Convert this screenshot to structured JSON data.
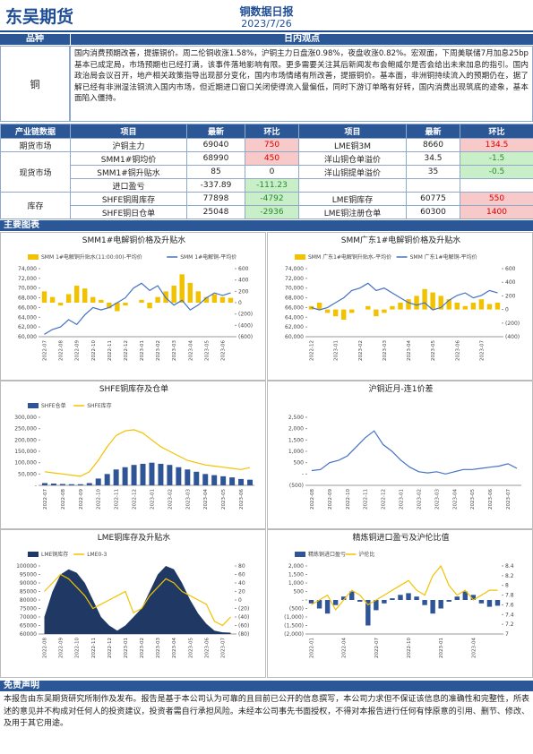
{
  "header": {
    "logo": "东吴期货",
    "title": "铜数据日报",
    "date": "2023/7/26"
  },
  "view": {
    "head_label": "品种",
    "head_title": "日内观点",
    "variety": "铜",
    "text": "国内消费预期改善，提振铜价。周二伦铜收涨1.58%，沪铜主力日盘涨0.98%，夜盘收涨0.82%。宏观面，下周美联储7月加息25bp基本已成定局，市场预期也已经打满，该事件落地影响有限。更多需要关注其后新闻发布会鲍威尔是否会给出未来加息的指引。国内政治局会议召开，地产相关政策指导出现部分变化，国内市场情绪有所改善，提振铜价。基本面，非洲铜持续流入的预期仍在，据了解已经有非洲湿法铜流入国内市场，但近期进口窗口关闭使得流入量偏低，同时下游订单略有好转，国内消费出现筑底的迹象，基本面陷入僵持。"
  },
  "table": {
    "headers": [
      "产业链数据",
      "项目",
      "最新",
      "环比",
      "项目",
      "最新",
      "环比"
    ],
    "groups": [
      {
        "name": "期货市场",
        "rows": [
          [
            "沪铜主力",
            69040,
            750,
            "LME铜3M",
            8660,
            134.5
          ]
        ]
      },
      {
        "name": "现货市场",
        "rows": [
          [
            "SMM1#铜均价",
            68990,
            450,
            "洋山铜仓单溢价",
            34.5,
            -1.5
          ],
          [
            "SMM1#铜升贴水",
            85,
            0,
            "洋山铜提单溢价",
            35,
            -0.5
          ],
          [
            "进口盈亏",
            -337.89,
            -111.23
          ]
        ]
      },
      {
        "name": "库存",
        "rows": [
          [
            "SHFE铜周库存",
            77898,
            -4792,
            "LME铜库存",
            60775,
            550
          ],
          [
            "SHFE铜日仓单",
            25048,
            -2936,
            "LME铜注册仓单",
            60300,
            1400
          ]
        ]
      }
    ]
  },
  "charts_title": "主要图表",
  "chart_data": [
    {
      "type": "combo",
      "title": "SMM1#电解铜价格及升贴水",
      "categories": [
        "2022-07",
        null,
        "2022-08",
        null,
        "2022-09",
        null,
        "2022-10",
        null,
        "2022-11",
        null,
        "2022-12",
        null,
        "2023-01",
        null,
        "2023-02",
        null,
        "2023-03",
        null,
        "2023-04",
        null,
        "2023-05",
        null,
        "2023-06",
        null
      ],
      "series": [
        {
          "name": "SMM 1#电解铜升贴水(11:00:00)-平均价",
          "type": "bar",
          "axis": "y2",
          "color": "#f2c200",
          "values": [
            200,
            100,
            -50,
            150,
            300,
            250,
            100,
            50,
            -100,
            -150,
            -50,
            0,
            50,
            -100,
            100,
            200,
            300,
            500,
            350,
            200,
            100,
            150,
            100,
            85
          ]
        },
        {
          "name": "SMM 1#电解铜-平均价",
          "type": "line",
          "color": "#4472c4",
          "values": [
            60500,
            61500,
            62000,
            63500,
            62500,
            64500,
            66000,
            65500,
            66000,
            67000,
            68000,
            70000,
            71000,
            69500,
            70500,
            68000,
            66500,
            67500,
            65500,
            66500,
            68000,
            69000,
            68500,
            69000
          ]
        }
      ],
      "ylim": [
        60000,
        74000
      ],
      "yticks": [
        {
          "value": 60000,
          "label": "60,000"
        },
        {
          "value": 62000,
          "label": "62,000"
        },
        {
          "value": 64000,
          "label": "64,000"
        },
        {
          "value": 66000,
          "label": "66,000"
        },
        {
          "value": 68000,
          "label": "68,000"
        },
        {
          "value": 70000,
          "label": "70,000"
        },
        {
          "value": 72000,
          "label": "72,000"
        },
        {
          "value": 74000,
          "label": "74,000"
        }
      ],
      "y2lim": [
        -600,
        600
      ],
      "y2ticks": [
        {
          "value": -600,
          "label": "(600)"
        },
        {
          "value": -400,
          "label": "(400)"
        },
        {
          "value": -200,
          "label": "(200)"
        },
        0,
        200,
        400,
        600
      ]
    },
    {
      "type": "combo",
      "title": "SMM广东1#电解铜价格及升贴水",
      "categories": [
        "2022-12",
        null,
        null,
        "2023-01",
        null,
        null,
        "2023-02",
        null,
        null,
        "2023-03",
        null,
        null,
        "2023-04",
        null,
        null,
        "2023-05",
        null,
        null,
        "2023-06",
        null,
        null,
        "2023-07",
        null,
        null
      ],
      "series": [
        {
          "name": "SMM 广东1#电解铜升贴水-平均价",
          "type": "bar",
          "axis": "y2",
          "color": "#f2c200",
          "values": [
            50,
            100,
            -50,
            -100,
            -150,
            -50,
            0,
            50,
            -100,
            -50,
            50,
            100,
            150,
            200,
            300,
            250,
            200,
            150,
            100,
            50,
            100,
            150,
            80,
            100
          ]
        },
        {
          "name": "SMM 广东1#电解铜-平均价",
          "type": "line",
          "color": "#4472c4",
          "values": [
            66000,
            65500,
            66000,
            67000,
            68000,
            69500,
            70000,
            71000,
            69500,
            70000,
            69000,
            68000,
            67000,
            66500,
            67000,
            65500,
            66000,
            67500,
            68500,
            69000,
            68000,
            68500,
            69500,
            69000
          ]
        }
      ],
      "ylim": [
        60000,
        74000
      ],
      "yticks": [
        {
          "value": 60000,
          "label": "60,000"
        },
        {
          "value": 62000,
          "label": "62,000"
        },
        {
          "value": 64000,
          "label": "64,000"
        },
        {
          "value": 66000,
          "label": "66,000"
        },
        {
          "value": 68000,
          "label": "68,000"
        },
        {
          "value": 70000,
          "label": "70,000"
        },
        {
          "value": 72000,
          "label": "72,000"
        },
        {
          "value": 74000,
          "label": "74,000"
        }
      ],
      "y2lim": [
        -400,
        600
      ],
      "y2ticks": [
        {
          "value": -400,
          "label": "(400)"
        },
        {
          "value": -200,
          "label": "(200)"
        },
        0,
        200,
        400,
        600
      ]
    },
    {
      "type": "combo",
      "title": "SHFE铜库存及仓单",
      "categories": [
        "2022-07",
        null,
        "2022-08",
        null,
        "2022-09",
        null,
        "2022-10",
        null,
        "2022-11",
        null,
        "2022-12",
        null,
        "2023-01",
        null,
        "2023-02",
        null,
        "2023-03",
        null,
        "2023-04",
        null,
        "2023-05",
        null,
        "2023-06",
        null
      ],
      "series": [
        {
          "name": "SHFE仓单",
          "type": "bar",
          "color": "#2f5597",
          "values": [
            10000,
            8000,
            6000,
            5000,
            5000,
            10000,
            30000,
            50000,
            70000,
            80000,
            90000,
            95000,
            100000,
            95000,
            90000,
            80000,
            70000,
            60000,
            50000,
            45000,
            40000,
            35000,
            28000,
            25000
          ]
        },
        {
          "name": "SHFE库存",
          "type": "line",
          "color": "#f2c200",
          "values": [
            60000,
            55000,
            50000,
            45000,
            40000,
            60000,
            110000,
            170000,
            220000,
            240000,
            245000,
            230000,
            200000,
            170000,
            150000,
            130000,
            110000,
            100000,
            90000,
            85000,
            80000,
            75000,
            70000,
            78000
          ]
        }
      ],
      "ylim": [
        0,
        300000
      ],
      "yticks": [
        {
          "value": 0,
          "label": "-"
        },
        {
          "value": 50000,
          "label": "50,000"
        },
        {
          "value": 100000,
          "label": "100,000"
        },
        {
          "value": 150000,
          "label": "150,000"
        },
        {
          "value": 200000,
          "label": "200,000"
        },
        {
          "value": 250000,
          "label": "250,000"
        },
        {
          "value": 300000,
          "label": "300,000"
        }
      ]
    },
    {
      "type": "line",
      "title": "沪铜近月-连1价差",
      "categories": [
        "2022-08",
        null,
        "2022-09",
        null,
        "2022-10",
        null,
        "2022-11",
        null,
        "2022-12",
        null,
        "2023-01",
        null,
        "2023-02",
        null,
        "2023-03",
        null,
        "2023-04",
        null,
        "2023-05",
        null,
        "2023-06",
        null,
        "2023-07",
        null
      ],
      "series": [
        {
          "name": "沪铜近月-连1价差",
          "type": "line",
          "color": "#4472c4",
          "values": [
            150,
            200,
            500,
            600,
            800,
            1200,
            1600,
            1900,
            1300,
            1000,
            600,
            300,
            100,
            50,
            100,
            0,
            100,
            200,
            200,
            250,
            300,
            350,
            450,
            250
          ]
        }
      ],
      "ylim": [
        -500,
        2500
      ],
      "yticks": [
        {
          "value": -500,
          "label": "(500)"
        },
        {
          "value": 0,
          "label": "-"
        },
        500,
        {
          "value": 1000,
          "label": "1,000"
        },
        {
          "value": 1500,
          "label": "1,500"
        },
        {
          "value": 2000,
          "label": "2,000"
        },
        {
          "value": 2500,
          "label": "2,500"
        }
      ]
    },
    {
      "type": "combo",
      "title": "LME铜库存及升贴水",
      "categories": [
        "2022-08",
        null,
        "2022-09",
        null,
        "2022-10",
        null,
        "2022-11",
        null,
        "2022-12",
        null,
        "2023-01",
        null,
        "2023-02",
        null,
        "2023-03",
        null,
        "2023-04",
        null,
        "2023-05",
        null,
        "2023-06",
        null,
        "2023-07",
        null
      ],
      "series": [
        {
          "name": "LME铜库存",
          "type": "area",
          "color": "#1f3864",
          "values": [
            70000,
            85000,
            95000,
            98000,
            96000,
            90000,
            80000,
            70000,
            65000,
            62000,
            65000,
            70000,
            75000,
            85000,
            95000,
            100000,
            98000,
            90000,
            80000,
            72000,
            66000,
            62000,
            61000,
            60800
          ]
        },
        {
          "name": "LME0-3",
          "type": "line",
          "axis": "y2",
          "color": "#f2c200",
          "values": [
            20,
            40,
            60,
            50,
            30,
            10,
            -20,
            -10,
            0,
            10,
            20,
            -30,
            -20,
            10,
            30,
            50,
            40,
            20,
            10,
            0,
            -10,
            -50,
            -60,
            -40
          ]
        }
      ],
      "ylim": [
        60000,
        100000
      ],
      "yticks": [
        {
          "value": 60000,
          "label": "60000"
        },
        {
          "value": 65000,
          "label": "65000"
        },
        {
          "value": 70000,
          "label": "70000"
        },
        {
          "value": 75000,
          "label": "75000"
        },
        {
          "value": 80000,
          "label": "80000"
        },
        {
          "value": 85000,
          "label": "85000"
        },
        {
          "value": 90000,
          "label": "90000"
        },
        {
          "value": 95000,
          "label": "95000"
        },
        {
          "value": 100000,
          "label": "100000"
        }
      ],
      "y2lim": [
        -80,
        80
      ],
      "y2ticks": [
        {
          "value": -80,
          "label": "(80)"
        },
        {
          "value": -60,
          "label": "(60)"
        },
        {
          "value": -40,
          "label": "(40)"
        },
        {
          "value": -20,
          "label": "(20)"
        },
        0,
        20,
        40,
        60,
        80
      ]
    },
    {
      "type": "combo",
      "title": "精炼铜进口盈亏及沪伦比值",
      "categories": [
        "2022-01",
        null,
        null,
        null,
        "2022-04",
        null,
        null,
        null,
        "2022-07",
        null,
        null,
        null,
        "2022-10",
        null,
        null,
        null,
        "2023-01",
        null,
        null,
        null,
        "2023-04",
        null,
        null,
        null
      ],
      "series": [
        {
          "name": "精炼铜进口盈亏",
          "type": "bar",
          "color": "#2f5597",
          "values": [
            -200,
            -500,
            -800,
            -300,
            200,
            500,
            -100,
            -1500,
            -600,
            -200,
            100,
            300,
            400,
            200,
            -300,
            -800,
            -500,
            -100,
            200,
            500,
            300,
            -200,
            -400,
            -338
          ]
        },
        {
          "name": "沪伦比",
          "type": "line",
          "axis": "y2",
          "color": "#f2c200",
          "values": [
            7.6,
            7.7,
            7.8,
            7.5,
            7.7,
            7.9,
            7.8,
            7.6,
            7.7,
            7.8,
            7.9,
            8.0,
            8.1,
            7.9,
            7.8,
            8.2,
            8.4,
            8.0,
            7.8,
            7.9,
            7.7,
            7.8,
            7.9,
            7.9
          ]
        }
      ],
      "ylim": [
        -2000,
        2000
      ],
      "yticks": [
        {
          "value": -2000,
          "label": "(2,000)"
        },
        {
          "value": -1500,
          "label": "(1,500)"
        },
        {
          "value": -1000,
          "label": "(1,000)"
        },
        {
          "value": -500,
          "label": "(500)"
        },
        {
          "value": 0,
          "label": "-"
        },
        500,
        {
          "value": 1000,
          "label": "1,000"
        },
        {
          "value": 1500,
          "label": "1,500"
        },
        {
          "value": 2000,
          "label": "2,000"
        }
      ],
      "y2lim": [
        7,
        8.4
      ],
      "y2ticks": [
        7,
        7.2,
        7.4,
        7.6,
        7.8,
        8,
        8.2,
        8.4
      ]
    }
  ],
  "disclaimer": {
    "title": "免责声明",
    "text": "本报告由东吴期货研究所制作及发布。报告是基于本公司认为可靠的且目前已公开的信息撰写，本公司力求但不保证该信息的准确性和完整性，所表述的意见并不构成对任何人的投资建议，投资者需自行承担风险。未经本公司事先书面授权，不得对本报告进行任何有悖原意的引用、删节、修改、及用于其它用途。"
  }
}
